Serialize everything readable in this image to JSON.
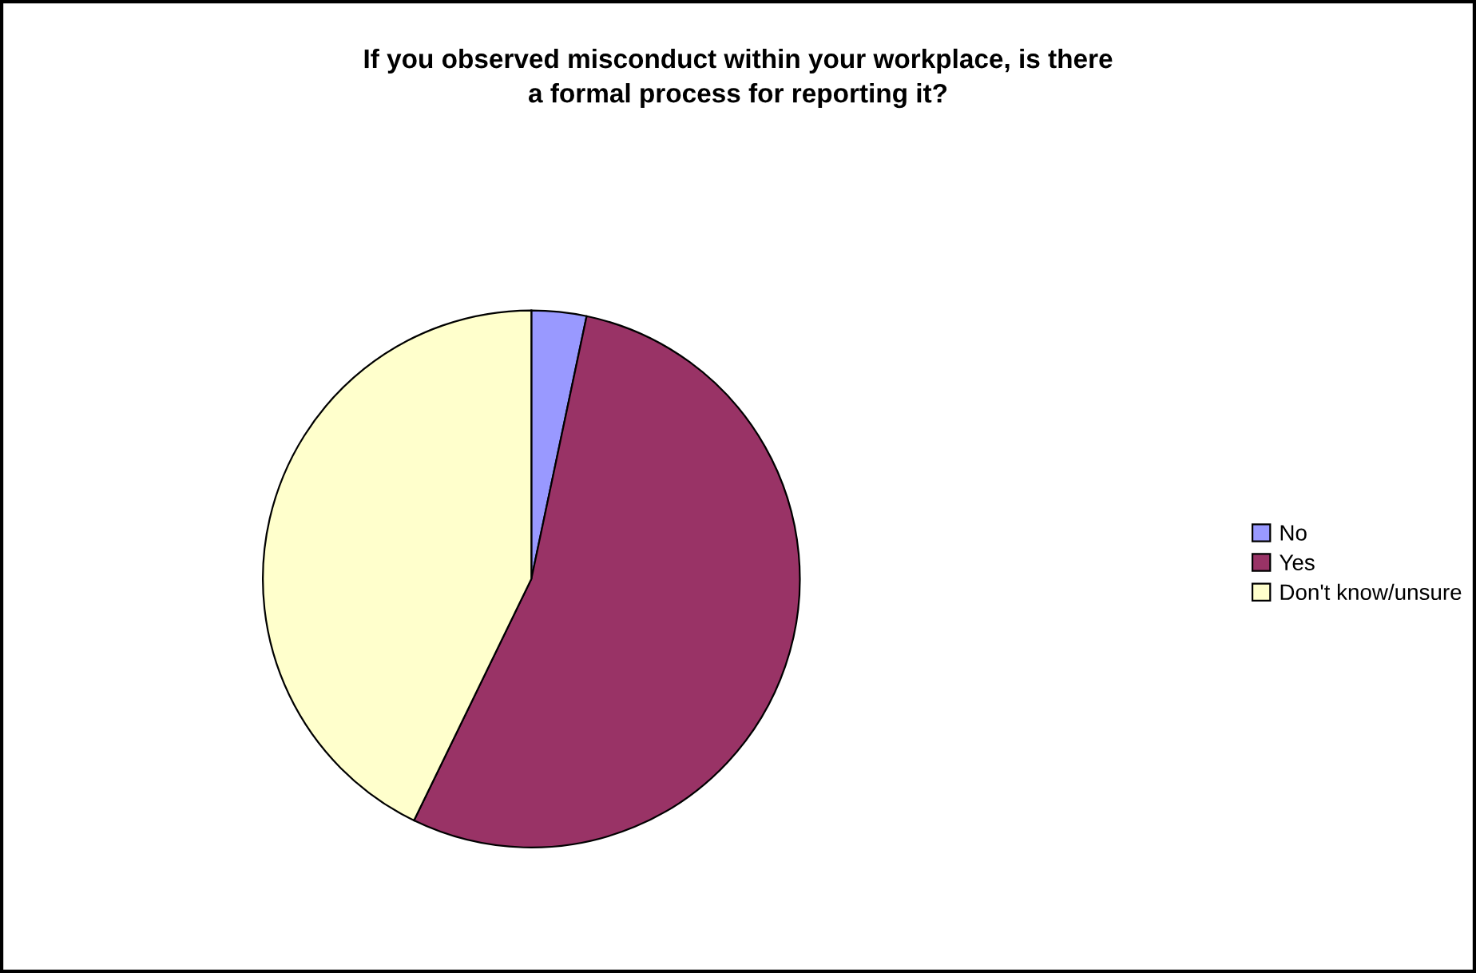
{
  "chart_data": {
    "type": "pie",
    "title": "If you observed misconduct within your workplace, is there\na formal process for reporting it?",
    "categories": [
      "No",
      "Yes",
      "Don't know/unsure"
    ],
    "values": [
      3.3,
      53.9,
      42.8
    ],
    "colors": [
      "#9999ff",
      "#993366",
      "#ffffcc"
    ],
    "legend": "right"
  }
}
